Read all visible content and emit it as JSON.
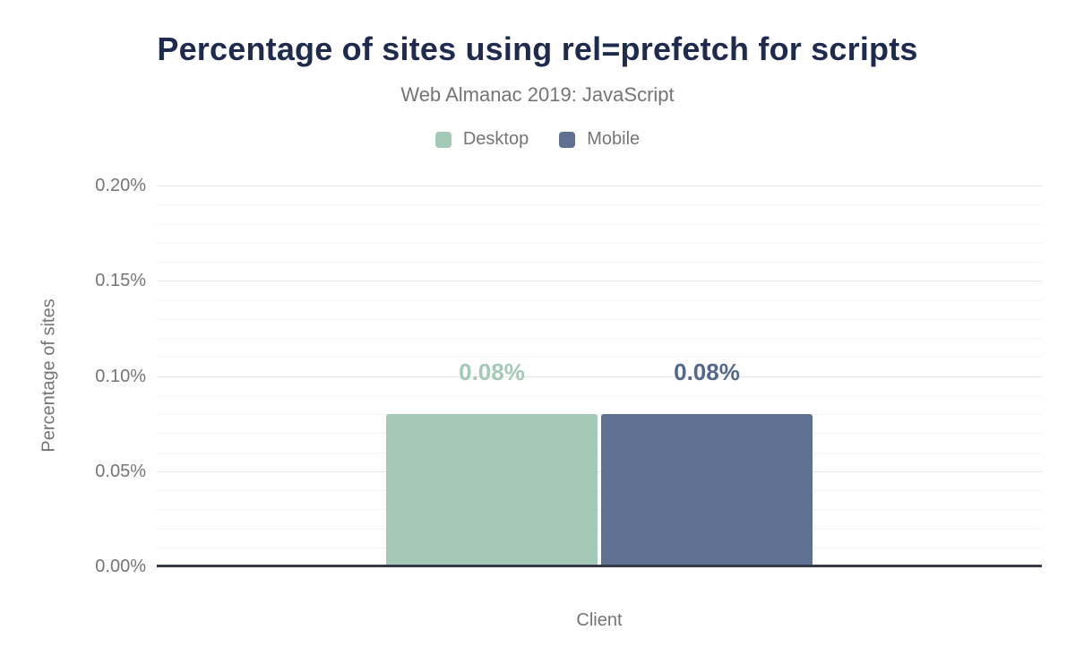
{
  "title": "Percentage of sites using rel=prefetch for scripts",
  "subtitle": "Web Almanac 2019: JavaScript",
  "colors": {
    "title": "#1e2b4f",
    "muted_text": "#757575",
    "axis_line": "#343b46",
    "grid_major": "#e7e7e7",
    "grid_minor": "#f5f5f5",
    "desktop": "#a4c9b6",
    "mobile": "#5f7190"
  },
  "chart_data": {
    "type": "bar",
    "title": "Percentage of sites using rel=prefetch for scripts",
    "subtitle": "Web Almanac 2019: JavaScript",
    "xlabel": "Client",
    "ylabel": "Percentage of sites",
    "ylim": [
      0,
      0.2
    ],
    "y_tick_step": 0.05,
    "y_minor_step": 0.01,
    "y_tick_labels": [
      "0.00%",
      "0.05%",
      "0.10%",
      "0.15%",
      "0.20%"
    ],
    "grid": true,
    "legend_position": "top",
    "series": [
      {
        "name": "Desktop",
        "value": 0.08,
        "label": "0.08%",
        "color": "#a4c9b6",
        "label_color": "#a4c9b6"
      },
      {
        "name": "Mobile",
        "value": 0.08,
        "label": "0.08%",
        "color": "#5f7190",
        "label_color": "#54678c"
      }
    ]
  }
}
